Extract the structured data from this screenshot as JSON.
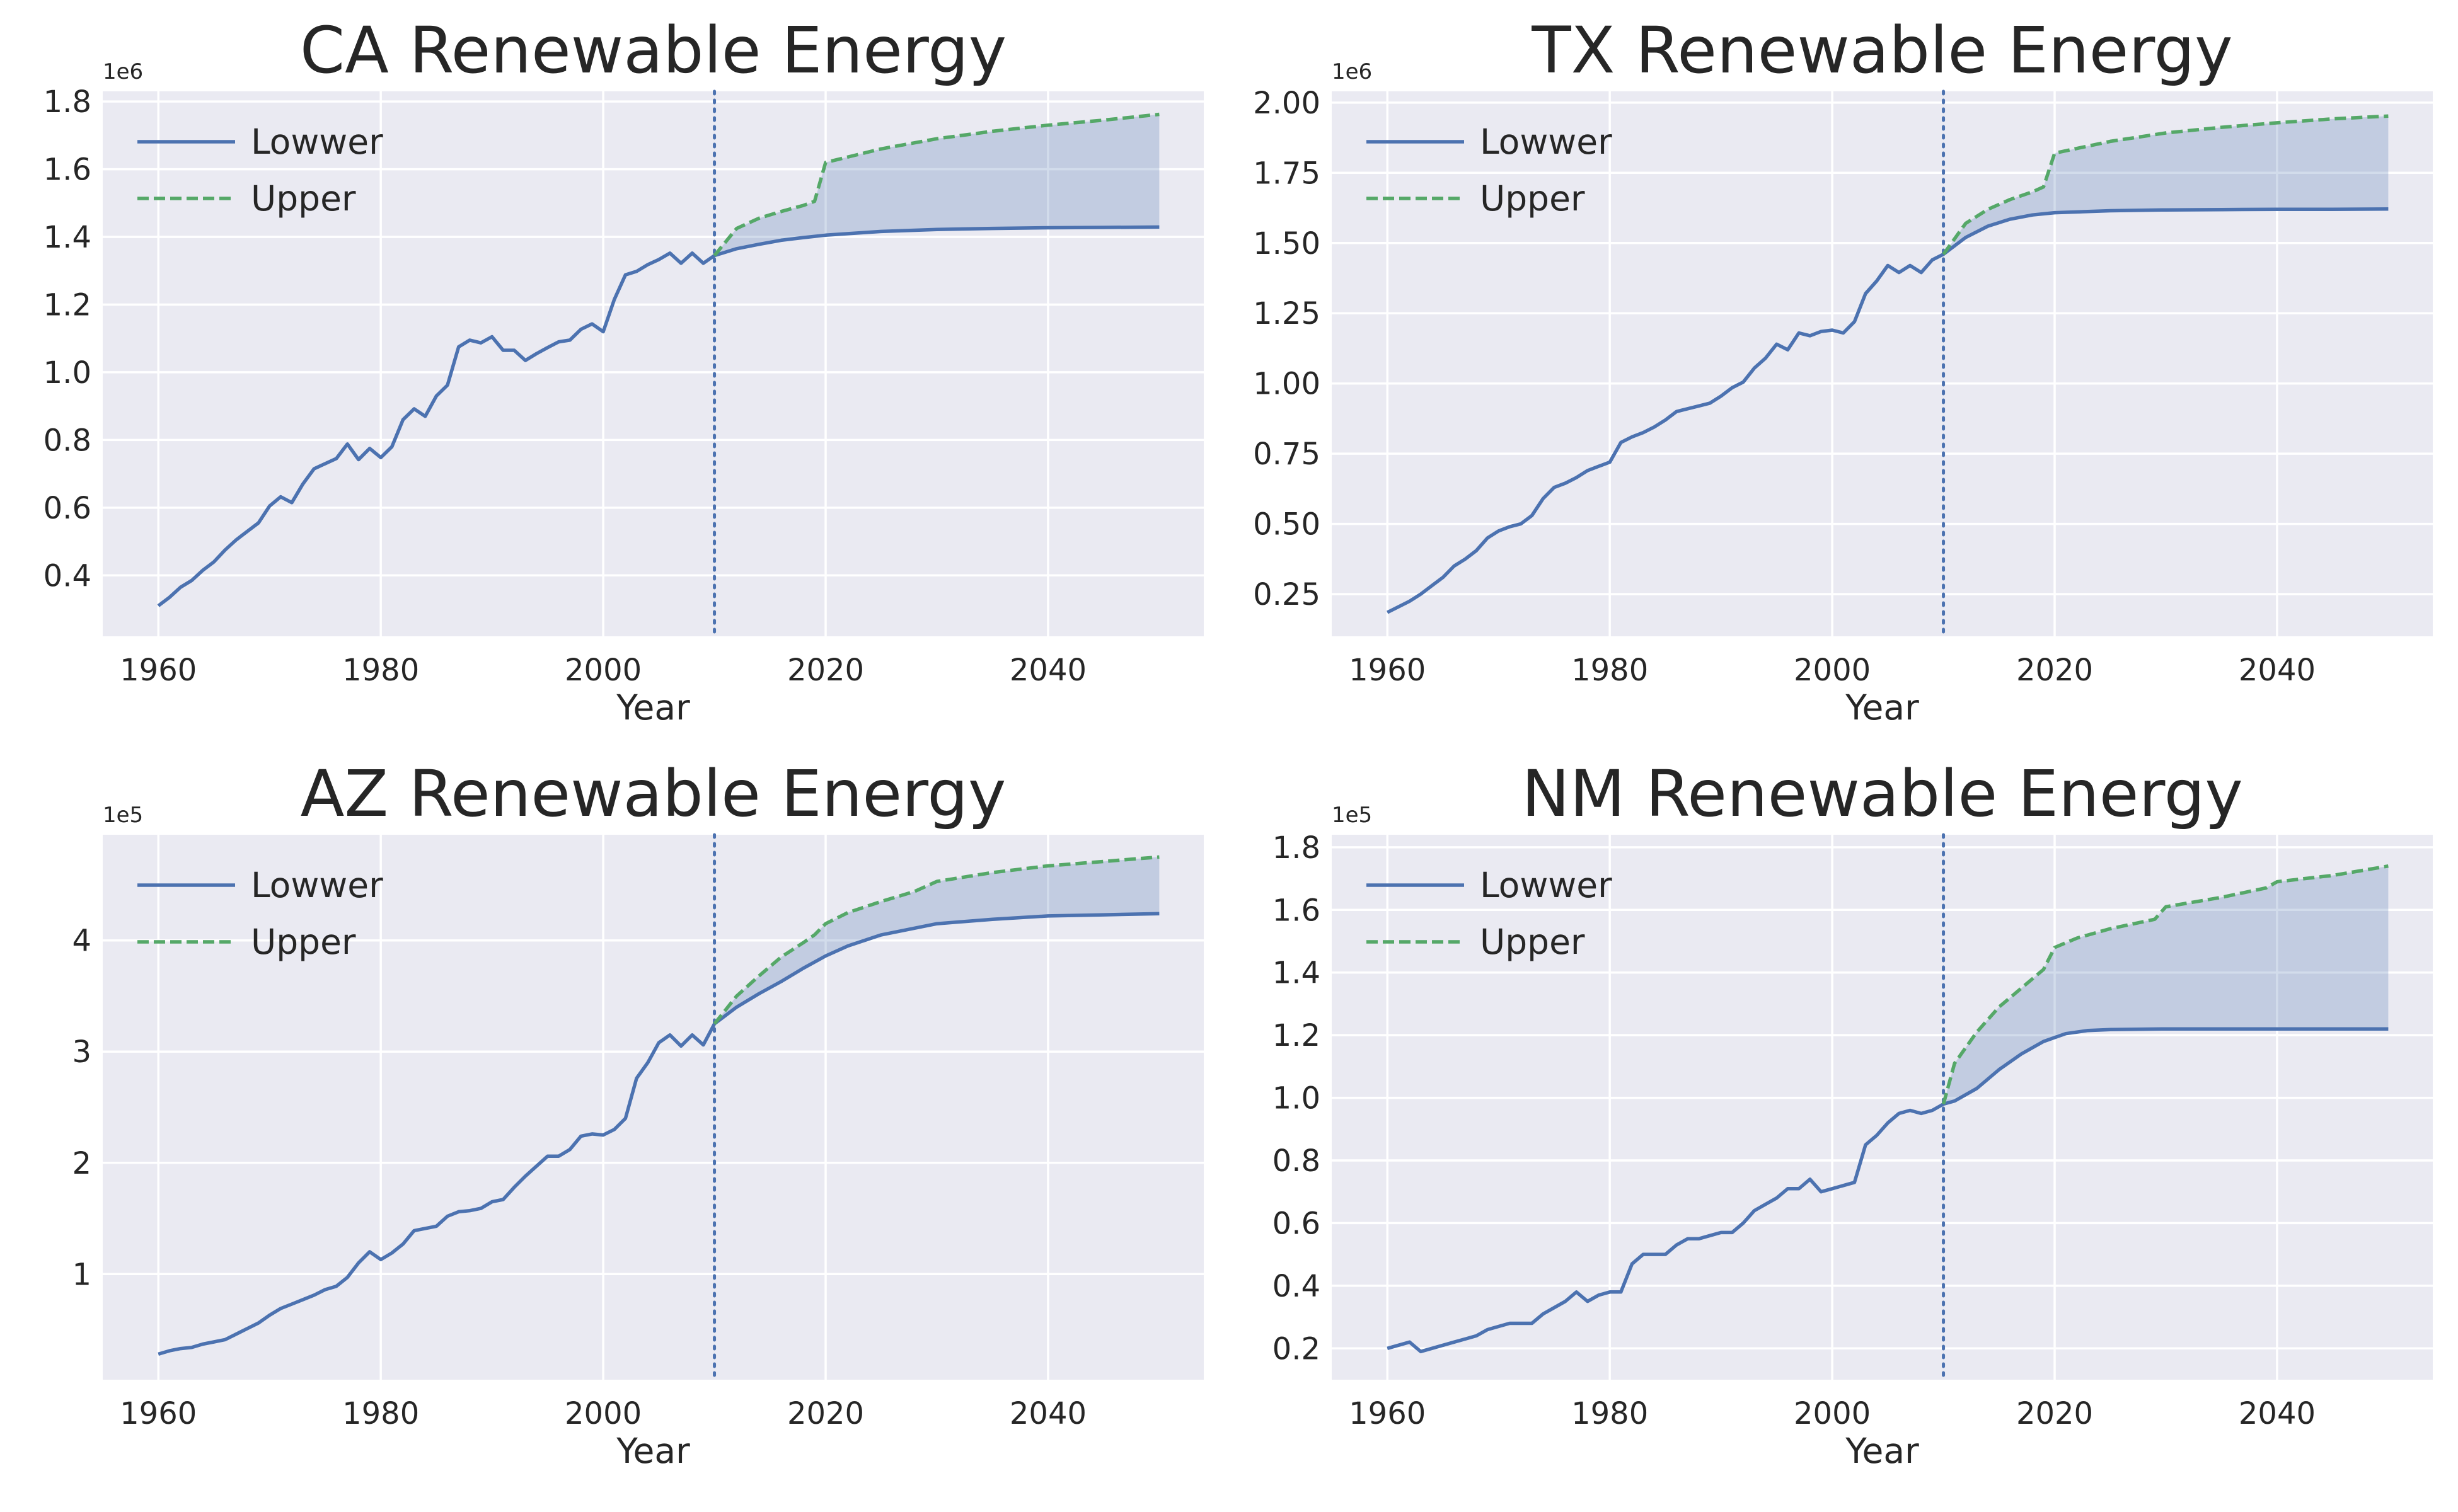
{
  "colors": {
    "lower": "#4c72b0",
    "upper": "#55a868",
    "fill": "#4c72b0",
    "background": "#eaeaf2",
    "grid": "#ffffff",
    "text": "#262626"
  },
  "chart_data": [
    {
      "type": "line",
      "title": "CA Renewable Energy",
      "xlabel": "Year",
      "ylabel": "",
      "offset_text": "1e6",
      "scale": 1000000,
      "xlim": [
        1955,
        2054
      ],
      "ylim": [
        220000,
        1830000
      ],
      "xticks": [
        1960,
        1980,
        2000,
        2020,
        2040
      ],
      "yticks": [
        400000,
        600000,
        800000,
        1000000,
        1200000,
        1400000,
        1600000,
        1800000
      ],
      "ytick_labels": [
        "0.4",
        "0.6",
        "0.8",
        "1.0",
        "1.2",
        "1.4",
        "1.6",
        "1.8"
      ],
      "vline_x": 2010,
      "legend": "upper-left",
      "series": [
        {
          "name": "Lowwer",
          "style": "solid",
          "x": [
            1960,
            1961,
            1962,
            1963,
            1964,
            1965,
            1966,
            1967,
            1968,
            1969,
            1970,
            1971,
            1972,
            1973,
            1974,
            1975,
            1976,
            1977,
            1978,
            1979,
            1980,
            1981,
            1982,
            1983,
            1984,
            1985,
            1986,
            1987,
            1988,
            1989,
            1990,
            1991,
            1992,
            1993,
            1994,
            1995,
            1996,
            1997,
            1998,
            1999,
            2000,
            2001,
            2002,
            2003,
            2004,
            2005,
            2006,
            2007,
            2008,
            2009,
            2010,
            2012,
            2014,
            2016,
            2018,
            2020,
            2025,
            2030,
            2035,
            2040,
            2045,
            2050
          ],
          "y": [
            310000,
            335000,
            365000,
            385000,
            415000,
            440000,
            475000,
            505000,
            530000,
            555000,
            605000,
            632000,
            615000,
            670000,
            715000,
            730000,
            745000,
            788000,
            742000,
            775000,
            748000,
            780000,
            860000,
            892000,
            870000,
            930000,
            962000,
            1075000,
            1095000,
            1087000,
            1105000,
            1065000,
            1065000,
            1035000,
            1055000,
            1073000,
            1090000,
            1095000,
            1127000,
            1143000,
            1120000,
            1215000,
            1288000,
            1298000,
            1318000,
            1333000,
            1352000,
            1322000,
            1352000,
            1322000,
            1345000,
            1365000,
            1378000,
            1390000,
            1398000,
            1405000,
            1416000,
            1422000,
            1425000,
            1427000,
            1428000,
            1429000
          ]
        },
        {
          "name": "Upper",
          "style": "dashed",
          "x": [
            2010,
            2012,
            2014,
            2016,
            2018,
            2019,
            2020,
            2025,
            2030,
            2035,
            2040,
            2045,
            2050
          ],
          "y": [
            1345000,
            1425000,
            1455000,
            1475000,
            1493000,
            1505000,
            1620000,
            1660000,
            1690000,
            1712000,
            1730000,
            1745000,
            1762000
          ]
        }
      ]
    },
    {
      "type": "line",
      "title": "TX Renewable Energy",
      "xlabel": "Year",
      "ylabel": "",
      "offset_text": "1e6",
      "scale": 1000000,
      "xlim": [
        1955,
        2054
      ],
      "ylim": [
        100000,
        2040000
      ],
      "xticks": [
        1960,
        1980,
        2000,
        2020,
        2040
      ],
      "yticks": [
        250000,
        500000,
        750000,
        1000000,
        1250000,
        1500000,
        1750000,
        2000000
      ],
      "ytick_labels": [
        "0.25",
        "0.50",
        "0.75",
        "1.00",
        "1.25",
        "1.50",
        "1.75",
        "2.00"
      ],
      "vline_x": 2010,
      "legend": "upper-left",
      "series": [
        {
          "name": "Lowwer",
          "style": "solid",
          "x": [
            1960,
            1961,
            1962,
            1963,
            1964,
            1965,
            1966,
            1967,
            1968,
            1969,
            1970,
            1971,
            1972,
            1973,
            1974,
            1975,
            1976,
            1977,
            1978,
            1979,
            1980,
            1981,
            1982,
            1983,
            1984,
            1985,
            1986,
            1987,
            1988,
            1989,
            1990,
            1991,
            1992,
            1993,
            1994,
            1995,
            1996,
            1997,
            1998,
            1999,
            2000,
            2001,
            2002,
            2003,
            2004,
            2005,
            2006,
            2007,
            2008,
            2009,
            2010,
            2012,
            2014,
            2016,
            2018,
            2020,
            2025,
            2030,
            2035,
            2040,
            2045,
            2050
          ],
          "y": [
            185000,
            205000,
            225000,
            250000,
            280000,
            310000,
            350000,
            375000,
            405000,
            450000,
            475000,
            490000,
            500000,
            530000,
            590000,
            630000,
            645000,
            665000,
            690000,
            705000,
            720000,
            790000,
            810000,
            825000,
            845000,
            870000,
            900000,
            910000,
            920000,
            930000,
            955000,
            985000,
            1005000,
            1055000,
            1090000,
            1140000,
            1120000,
            1180000,
            1170000,
            1185000,
            1190000,
            1180000,
            1220000,
            1320000,
            1365000,
            1420000,
            1395000,
            1420000,
            1395000,
            1440000,
            1460000,
            1520000,
            1560000,
            1585000,
            1600000,
            1608000,
            1615000,
            1618000,
            1619000,
            1620000,
            1620000,
            1621000
          ]
        },
        {
          "name": "Upper",
          "style": "dashed",
          "x": [
            2010,
            2012,
            2014,
            2016,
            2018,
            2019,
            2020,
            2025,
            2030,
            2035,
            2040,
            2045,
            2050
          ],
          "y": [
            1460000,
            1570000,
            1620000,
            1655000,
            1682000,
            1700000,
            1820000,
            1862000,
            1892000,
            1912000,
            1928000,
            1942000,
            1952000
          ]
        }
      ]
    },
    {
      "type": "line",
      "title": "AZ Renewable Energy",
      "xlabel": "Year",
      "ylabel": "",
      "offset_text": "1e5",
      "scale": 100000,
      "xlim": [
        1955,
        2054
      ],
      "ylim": [
        5000,
        495000
      ],
      "xticks": [
        1960,
        1980,
        2000,
        2020,
        2040
      ],
      "yticks": [
        100000,
        200000,
        300000,
        400000
      ],
      "ytick_labels": [
        "1",
        "2",
        "3",
        "4"
      ],
      "vline_x": 2010,
      "legend": "upper-left",
      "series": [
        {
          "name": "Lowwer",
          "style": "solid",
          "x": [
            1960,
            1961,
            1962,
            1963,
            1964,
            1965,
            1966,
            1967,
            1968,
            1969,
            1970,
            1971,
            1972,
            1973,
            1974,
            1975,
            1976,
            1977,
            1978,
            1979,
            1980,
            1981,
            1982,
            1983,
            1984,
            1985,
            1986,
            1987,
            1988,
            1989,
            1990,
            1991,
            1992,
            1993,
            1994,
            1995,
            1996,
            1997,
            1998,
            1999,
            2000,
            2001,
            2002,
            2003,
            2004,
            2005,
            2006,
            2007,
            2008,
            2009,
            2010,
            2012,
            2014,
            2016,
            2018,
            2020,
            2022,
            2025,
            2030,
            2035,
            2040,
            2045,
            2050
          ],
          "y": [
            28000,
            31000,
            33000,
            34000,
            37000,
            39000,
            41000,
            46000,
            51000,
            56000,
            63000,
            69000,
            73000,
            77000,
            81000,
            86000,
            89000,
            97000,
            110000,
            120000,
            113000,
            119000,
            127000,
            139000,
            141000,
            143000,
            152000,
            156000,
            157000,
            159000,
            165000,
            167000,
            178000,
            188000,
            197000,
            206000,
            206000,
            212000,
            224000,
            226000,
            225000,
            230000,
            240000,
            276000,
            290000,
            308000,
            315000,
            305000,
            315000,
            306000,
            325000,
            340000,
            352000,
            363000,
            375000,
            386000,
            395000,
            405000,
            415000,
            419000,
            422000,
            423000,
            424000
          ]
        },
        {
          "name": "Upper",
          "style": "dashed",
          "x": [
            2010,
            2012,
            2014,
            2016,
            2018,
            2019,
            2020,
            2022,
            2025,
            2028,
            2030,
            2035,
            2040,
            2045,
            2050
          ],
          "y": [
            325000,
            350000,
            368000,
            385000,
            398000,
            405000,
            415000,
            425000,
            435000,
            444000,
            453000,
            461000,
            467000,
            471000,
            475000
          ]
        }
      ]
    },
    {
      "type": "line",
      "title": "NM Renewable Energy",
      "xlabel": "Year",
      "ylabel": "",
      "offset_text": "1e5",
      "scale": 100000,
      "xlim": [
        1955,
        2054
      ],
      "ylim": [
        10000,
        184000
      ],
      "xticks": [
        1960,
        1980,
        2000,
        2020,
        2040
      ],
      "yticks": [
        20000,
        40000,
        60000,
        80000,
        100000,
        120000,
        140000,
        160000,
        180000
      ],
      "ytick_labels": [
        "0.2",
        "0.4",
        "0.6",
        "0.8",
        "1.0",
        "1.2",
        "1.4",
        "1.6",
        "1.8"
      ],
      "vline_x": 2010,
      "legend": "upper-left",
      "series": [
        {
          "name": "Lowwer",
          "style": "solid",
          "x": [
            1960,
            1961,
            1962,
            1963,
            1964,
            1965,
            1966,
            1967,
            1968,
            1969,
            1970,
            1971,
            1972,
            1973,
            1974,
            1975,
            1976,
            1977,
            1978,
            1979,
            1980,
            1981,
            1982,
            1983,
            1984,
            1985,
            1986,
            1987,
            1988,
            1989,
            1990,
            1991,
            1992,
            1993,
            1994,
            1995,
            1996,
            1997,
            1998,
            1999,
            2000,
            2001,
            2002,
            2003,
            2004,
            2005,
            2006,
            2007,
            2008,
            2009,
            2010,
            2011,
            2013,
            2015,
            2017,
            2019,
            2021,
            2023,
            2025,
            2030,
            2035,
            2040,
            2045,
            2050
          ],
          "y": [
            20000,
            21000,
            22000,
            19000,
            20000,
            21000,
            22000,
            23000,
            24000,
            26000,
            27000,
            28000,
            28000,
            28000,
            31000,
            33000,
            35000,
            38000,
            35000,
            37000,
            38000,
            38000,
            47000,
            50000,
            50000,
            50000,
            53000,
            55000,
            55000,
            56000,
            57000,
            57000,
            60000,
            64000,
            66000,
            68000,
            71000,
            71000,
            74000,
            70000,
            71000,
            72000,
            73000,
            85000,
            88000,
            92000,
            95000,
            96000,
            95000,
            96000,
            98000,
            99000,
            103000,
            109000,
            114000,
            118000,
            120500,
            121500,
            121800,
            122000,
            122000,
            122000,
            122000,
            122000
          ]
        },
        {
          "name": "Upper",
          "style": "dashed",
          "x": [
            2010,
            2011,
            2013,
            2015,
            2017,
            2019,
            2020,
            2022,
            2025,
            2029,
            2030,
            2035,
            2039,
            2040,
            2045,
            2050
          ],
          "y": [
            98000,
            111000,
            121000,
            129000,
            135000,
            141000,
            148000,
            151000,
            154000,
            157000,
            161000,
            164000,
            167000,
            169000,
            171000,
            174000
          ]
        }
      ]
    }
  ]
}
